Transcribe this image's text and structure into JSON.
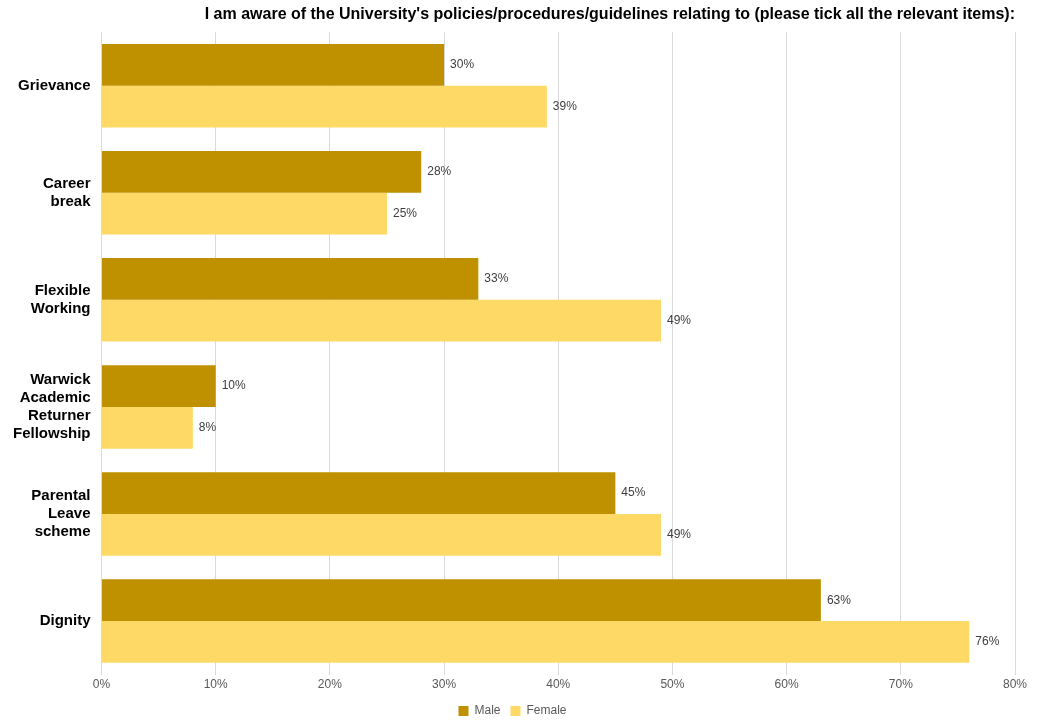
{
  "chart_data": {
    "type": "bar",
    "orientation": "horizontal",
    "title": "I am aware of the University's policies/procedures/guidelines relating to (please tick all the relevant items):",
    "categories": [
      "Grievance",
      "Career break",
      "Flexible Working",
      "Warwick Academic Returner Fellowship",
      "Parental Leave scheme",
      "Dignity"
    ],
    "series": [
      {
        "name": "Male",
        "color": "#bf9000",
        "values": [
          30,
          28,
          33,
          10,
          45,
          63
        ],
        "value_labels": [
          "30%",
          "28%",
          "33%",
          "10%",
          "45%",
          "63%"
        ]
      },
      {
        "name": "Female",
        "color": "#ffd966",
        "values": [
          39,
          25,
          49,
          8,
          49,
          76
        ],
        "value_labels": [
          "39%",
          "25%",
          "49%",
          "8%",
          "49%",
          "76%"
        ]
      }
    ],
    "xlim": [
      0,
      80
    ],
    "xticks": [
      {
        "value": 0,
        "label": "0%"
      },
      {
        "value": 10,
        "label": "10%"
      },
      {
        "value": 20,
        "label": "20%"
      },
      {
        "value": 30,
        "label": "30%"
      },
      {
        "value": 40,
        "label": "40%"
      },
      {
        "value": 50,
        "label": "50%"
      },
      {
        "value": 60,
        "label": "60%"
      },
      {
        "value": 70,
        "label": "70%"
      },
      {
        "value": 80,
        "label": "80%"
      }
    ],
    "grid": "x",
    "legend": "bottom"
  }
}
